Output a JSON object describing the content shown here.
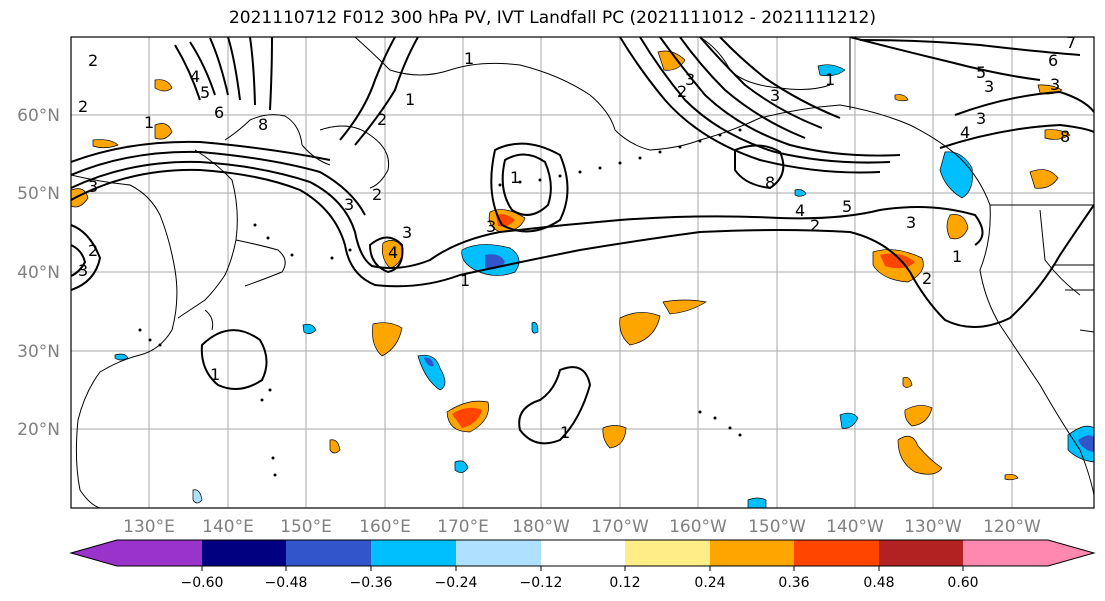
{
  "title": "2021110712 F012 300 hPa PV, IVT Landfall PC (2021111012 - 2021111212)",
  "lon_labels": [
    "130°E",
    "140°E",
    "150°E",
    "160°E",
    "170°E",
    "180°W",
    "170°W",
    "160°W",
    "150°W",
    "140°W",
    "130°W",
    "120°W"
  ],
  "lat_labels": [
    "60°N",
    "50°N",
    "40°N",
    "30°N",
    "20°N"
  ],
  "colorbar": {
    "colors": [
      "#9933cc",
      "#000080",
      "#3355cc",
      "#00bfff",
      "#b0e0ff",
      "#ffffff",
      "#ffee88",
      "#ffa500",
      "#ff4500",
      "#b22222",
      "#ff88b0"
    ],
    "tick_labels": [
      "−0.60",
      "−0.48",
      "−0.36",
      "−0.24",
      "−0.12",
      "0.12",
      "0.24",
      "0.36",
      "0.48",
      "0.60"
    ]
  },
  "contour_labels": [
    "1",
    "2",
    "3",
    "4",
    "5",
    "6",
    "7",
    "8",
    "1",
    "2",
    "3",
    "4",
    "5",
    "6",
    "7",
    "8",
    "2",
    "3",
    "4",
    "3",
    "1",
    "1",
    "1",
    "2",
    "1",
    "2",
    "3",
    "4",
    "5",
    "8",
    "1",
    "2",
    "3",
    "6",
    "3",
    "4",
    "3",
    "8",
    "3"
  ]
}
